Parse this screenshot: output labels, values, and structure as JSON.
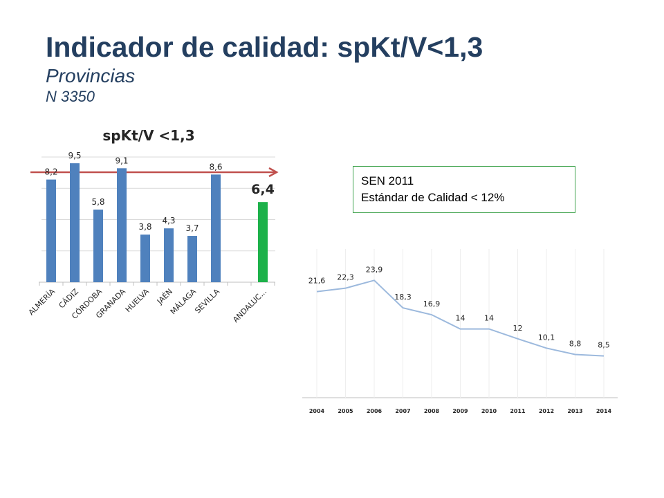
{
  "header": {
    "title": "Indicador de calidad: spKt/V<1,3",
    "subtitle": "Provincias",
    "count": "N 3350"
  },
  "standard_box": {
    "line1": "SEN 2011",
    "line2": "Estándar de Calidad  < 12%"
  },
  "colors": {
    "title": "#243f60",
    "bar": "#4f81bd",
    "highlight_bar": "#1db14a",
    "arrow": "#c0504d",
    "line": "#9cb9dd",
    "box_border": "#3fa34d"
  },
  "chart_data": [
    {
      "type": "bar",
      "title": "spKt/V <1,3",
      "categories": [
        "ALMERÍA",
        "CÁDIZ",
        "CÓRDOBA",
        "GRANADA",
        "HUELVA",
        "JAÉN",
        "MÁLAGA",
        "SEVILLA",
        "ANDALUC..."
      ],
      "values": [
        8.2,
        9.5,
        5.8,
        9.1,
        3.8,
        4.3,
        3.7,
        8.6,
        6.4
      ],
      "value_labels": [
        "8,2",
        "9,5",
        "5,8",
        "9,1",
        "3,8",
        "4,3",
        "3,7",
        "8,6",
        "6,4"
      ],
      "highlight_index": 8,
      "ylim": [
        0,
        10
      ],
      "grid": true,
      "arrow": true
    },
    {
      "type": "line",
      "x": [
        "2004",
        "2005",
        "2006",
        "2007",
        "2008",
        "2009",
        "2010",
        "2011",
        "2012",
        "2013",
        "2014"
      ],
      "values": [
        21.6,
        22.3,
        23.9,
        18.3,
        16.9,
        14,
        14,
        12,
        10.1,
        8.8,
        8.5
      ],
      "value_labels": [
        "21,6",
        "22,3",
        "23,9",
        "18,3",
        "16,9",
        "14",
        "14",
        "12",
        "10,1",
        "8,8",
        "8,5"
      ],
      "ylim": [
        0,
        30
      ],
      "grid": "vertical"
    }
  ]
}
